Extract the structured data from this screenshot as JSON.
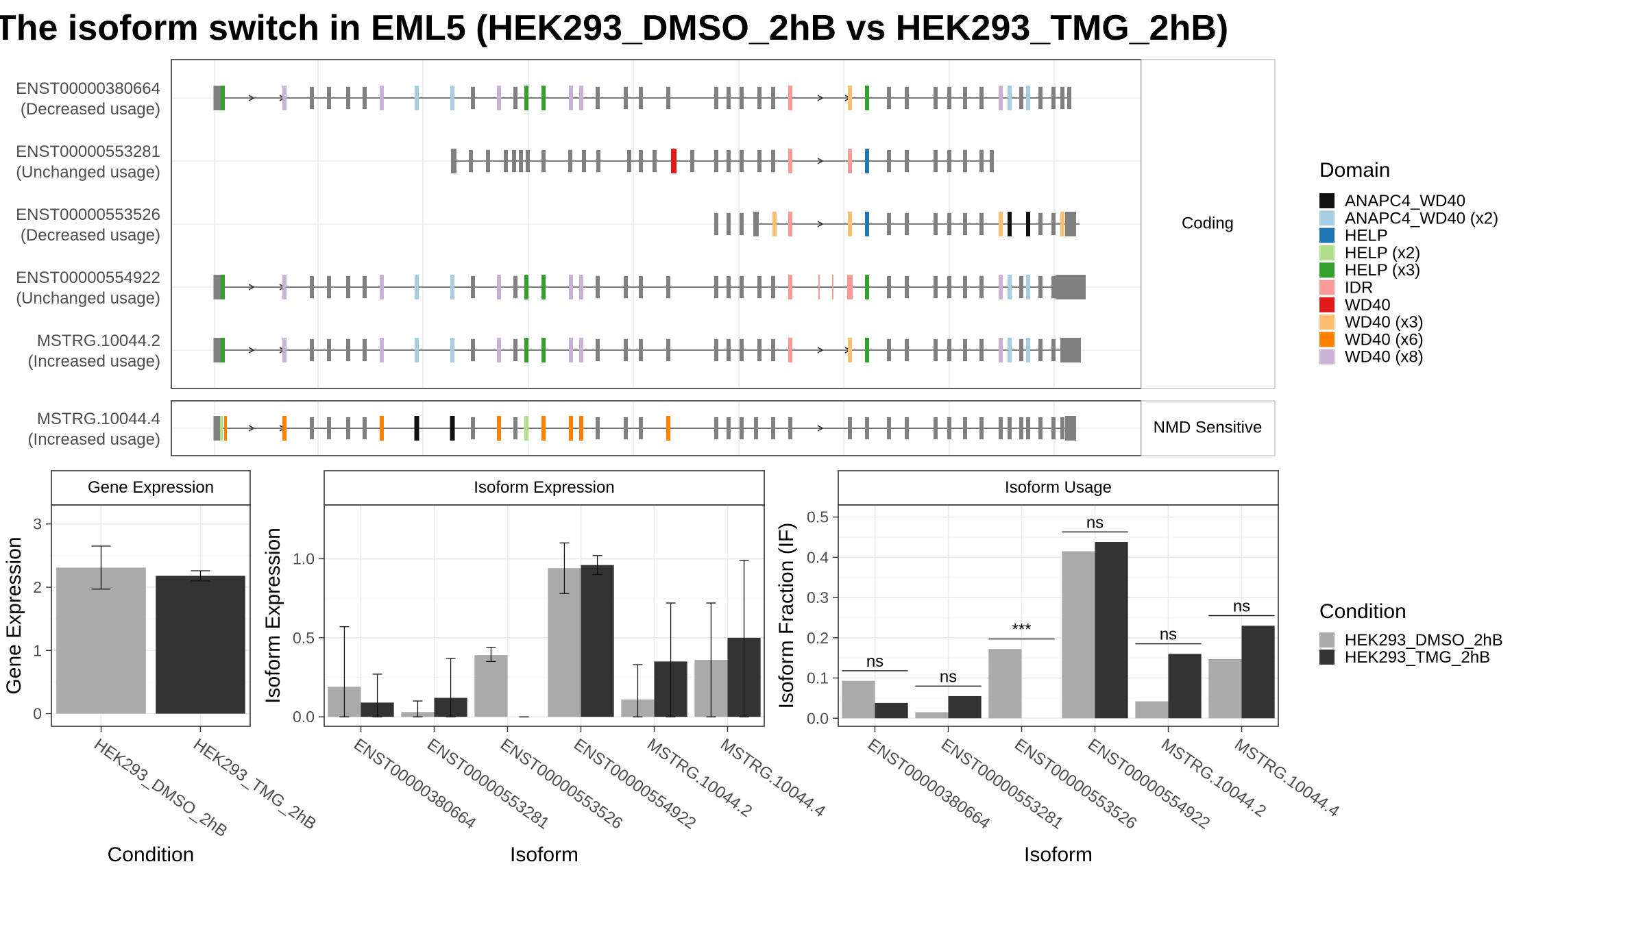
{
  "title": "The isoform switch in EML5 (HEK293_DMSO_2hB vs HEK293_TMG_2hB)",
  "colors": {
    "ANAPC4_WD40": "#111111",
    "ANAPC4_WD40 (x2)": "#A6CEE3",
    "HELP": "#1F78B4",
    "HELP (x2)": "#B2DF8A",
    "HELP (x3)": "#33A02C",
    "IDR": "#FB9A99",
    "WD40": "#E31A1C",
    "WD40 (x3)": "#FDBF6F",
    "WD40 (x6)": "#FF7F00",
    "WD40 (x8)": "#CAB2D6",
    "exon": "#808080",
    "dmso": "#AAAAAA",
    "tmg": "#333333"
  },
  "structure": {
    "groups": [
      {
        "label": "Coding",
        "isoforms": [
          {
            "name": "ENST00000380664",
            "usage": "(Decreased usage)"
          },
          {
            "name": "ENST00000553281",
            "usage": "(Unchanged usage)"
          },
          {
            "name": "ENST00000553526",
            "usage": "(Decreased usage)"
          },
          {
            "name": "ENST00000554922",
            "usage": "(Unchanged usage)"
          },
          {
            "name": "MSTRG.10044.2",
            "usage": "(Increased usage)"
          }
        ]
      },
      {
        "label": "NMD Sensitive",
        "isoforms": [
          {
            "name": "MSTRG.10044.4",
            "usage": "(Increased usage)"
          }
        ]
      }
    ],
    "domain_legend_title": "Domain",
    "domain_legend": [
      "ANAPC4_WD40",
      "ANAPC4_WD40 (x2)",
      "HELP",
      "HELP (x2)",
      "HELP (x3)",
      "IDR",
      "WD40",
      "WD40 (x3)",
      "WD40 (x6)",
      "WD40 (x8)"
    ]
  },
  "condition_legend": {
    "title": "Condition",
    "items": [
      "HEK293_DMSO_2hB",
      "HEK293_TMG_2hB"
    ]
  },
  "chart_data": [
    {
      "type": "bar",
      "title": "Gene Expression",
      "xlabel": "Condition",
      "ylabel": "Gene Expression",
      "ylim": [
        -0.2,
        3.3
      ],
      "yticks": [
        0,
        1,
        2,
        3
      ],
      "categories": [
        "HEK293_DMSO_2hB",
        "HEK293_TMG_2hB"
      ],
      "values": [
        2.31,
        2.18
      ],
      "err_low": [
        1.97,
        2.1
      ],
      "err_high": [
        2.65,
        2.26
      ]
    },
    {
      "type": "bar",
      "title": "Isoform Expression",
      "xlabel": "Isoform",
      "ylabel": "Isoform Expression",
      "ylim": [
        -0.06,
        1.34
      ],
      "yticks": [
        0.0,
        0.5,
        1.0
      ],
      "categories": [
        "ENST00000380664",
        "ENST00000553281",
        "ENST00000553526",
        "ENST00000554922",
        "MSTRG.10044.2",
        "MSTRG.10044.4"
      ],
      "series": [
        {
          "name": "HEK293_DMSO_2hB",
          "values": [
            0.19,
            0.03,
            0.39,
            0.94,
            0.11,
            0.36
          ],
          "err_low": [
            0.0,
            0.0,
            0.35,
            0.78,
            0.0,
            0.0
          ],
          "err_high": [
            0.57,
            0.1,
            0.44,
            1.1,
            0.33,
            0.72
          ]
        },
        {
          "name": "HEK293_TMG_2hB",
          "values": [
            0.09,
            0.12,
            0.0,
            0.96,
            0.35,
            0.5
          ],
          "err_low": [
            0.0,
            0.0,
            0.0,
            0.9,
            0.0,
            0.0
          ],
          "err_high": [
            0.27,
            0.37,
            0.0,
            1.02,
            0.72,
            0.99
          ]
        }
      ]
    },
    {
      "type": "bar",
      "title": "Isoform Usage",
      "xlabel": "Isoform",
      "ylabel": "Isoform Fraction (IF)",
      "ylim": [
        -0.02,
        0.53
      ],
      "yticks": [
        0.0,
        0.1,
        0.2,
        0.3,
        0.4,
        0.5
      ],
      "categories": [
        "ENST00000380664",
        "ENST00000553281",
        "ENST00000553526",
        "ENST00000554922",
        "MSTRG.10044.2",
        "MSTRG.10044.4"
      ],
      "series": [
        {
          "name": "HEK293_DMSO_2hB",
          "values": [
            0.093,
            0.015,
            0.172,
            0.415,
            0.042,
            0.147
          ]
        },
        {
          "name": "HEK293_TMG_2hB",
          "values": [
            0.038,
            0.055,
            0.0,
            0.438,
            0.16,
            0.23
          ]
        }
      ],
      "significance": [
        "ns",
        "ns",
        "***",
        "ns",
        "ns",
        "ns"
      ],
      "sig_y": [
        0.118,
        0.08,
        0.197,
        0.463,
        0.185,
        0.255
      ]
    }
  ]
}
